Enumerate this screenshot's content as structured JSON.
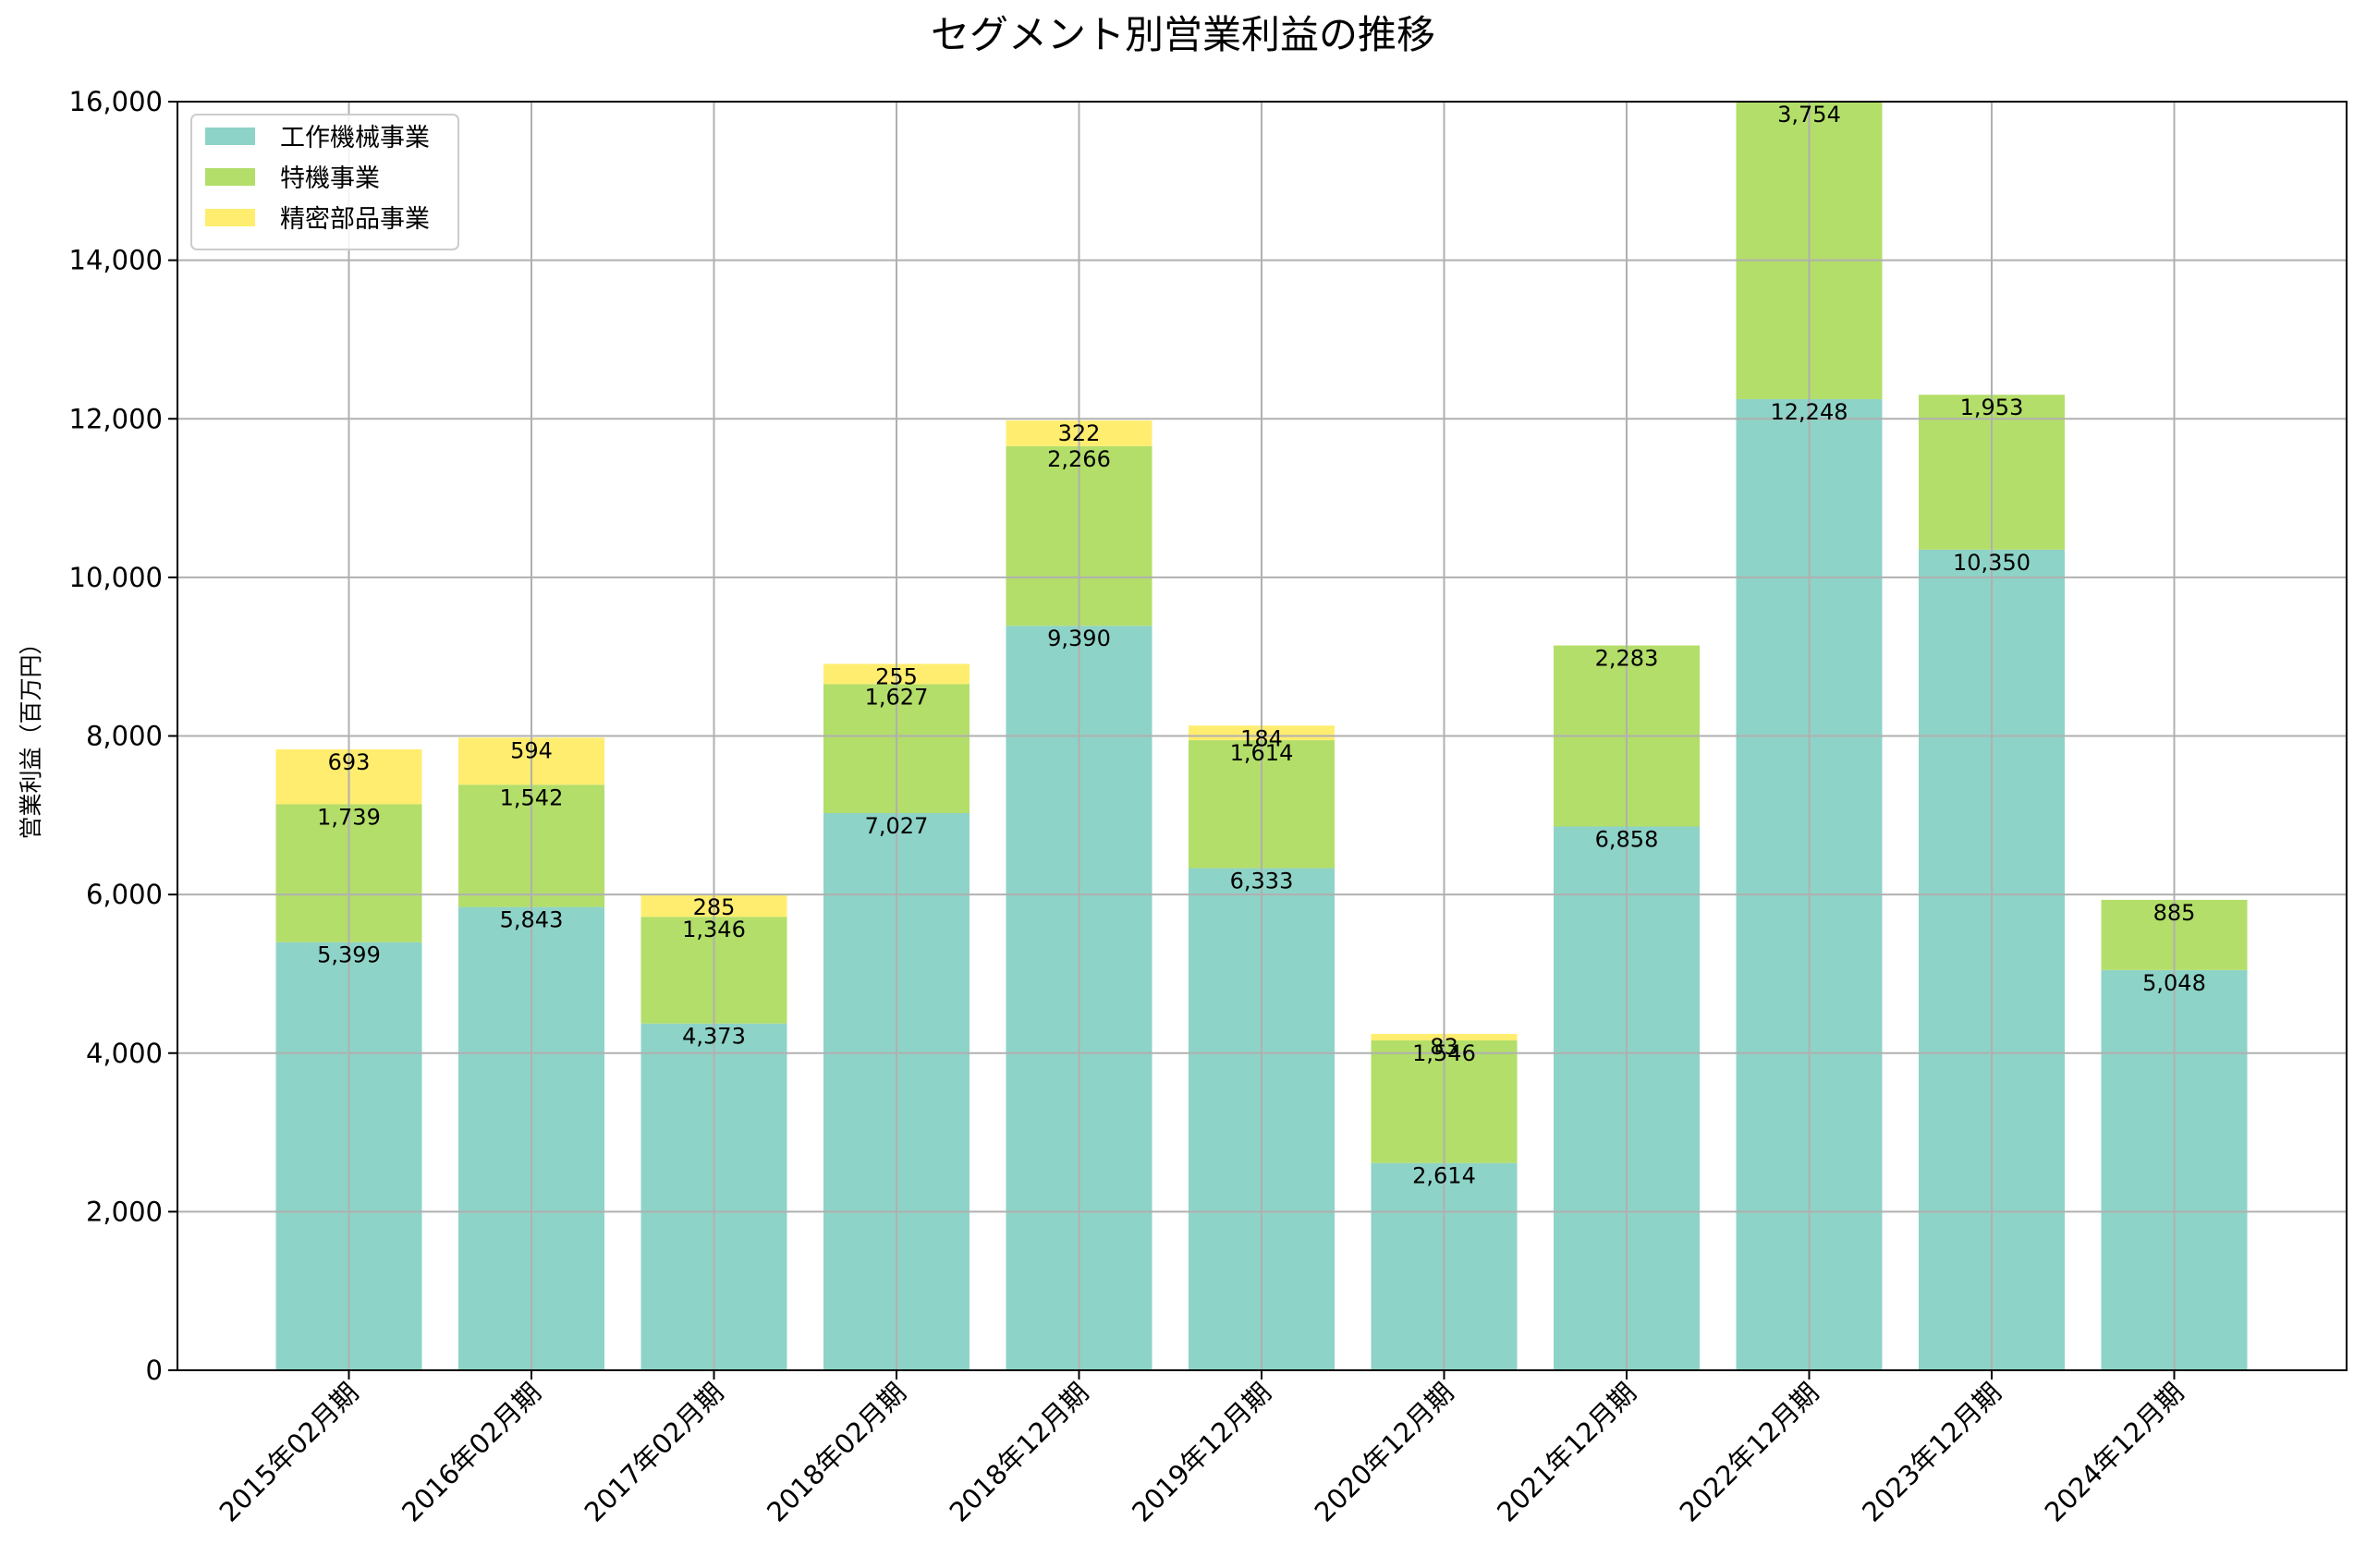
{
  "chart_data": {
    "type": "bar",
    "stacked": true,
    "title": "セグメント別営業利益の推移",
    "xlabel": "",
    "ylabel": "営業利益（百万円）",
    "ylim": [
      0,
      16000
    ],
    "yticks": [
      0,
      2000,
      4000,
      6000,
      8000,
      10000,
      12000,
      14000,
      16000
    ],
    "ytick_labels": [
      "0",
      "2,000",
      "4,000",
      "6,000",
      "8,000",
      "10,000",
      "12,000",
      "14,000",
      "16,000"
    ],
    "grid": true,
    "legend_position": "top-left",
    "categories": [
      "2015年02月期",
      "2016年02月期",
      "2017年02月期",
      "2018年02月期",
      "2018年12月期",
      "2019年12月期",
      "2020年12月期",
      "2021年12月期",
      "2022年12月期",
      "2023年12月期",
      "2024年12月期"
    ],
    "series": [
      {
        "name": "工作機械事業",
        "color": "#8ed3c7",
        "values": [
          5399,
          5843,
          4373,
          7027,
          9390,
          6333,
          2614,
          6858,
          12248,
          10350,
          5048
        ],
        "labels": [
          "5,399",
          "5,843",
          "4,373",
          "7,027",
          "9,390",
          "6,333",
          "2,614",
          "6,858",
          "12,248",
          "10,350",
          "5,048"
        ]
      },
      {
        "name": "特機事業",
        "color": "#b3de69",
        "values": [
          1739,
          1542,
          1346,
          1627,
          2266,
          1614,
          1546,
          2283,
          3754,
          1953,
          885
        ],
        "labels": [
          "1,739",
          "1,542",
          "1,346",
          "1,627",
          "2,266",
          "1,614",
          "1,546",
          "2,283",
          "3,754",
          "1,953",
          "885"
        ]
      },
      {
        "name": "精密部品事業",
        "color": "#ffed6f",
        "values": [
          693,
          594,
          285,
          255,
          322,
          184,
          83,
          null,
          null,
          null,
          null
        ],
        "labels": [
          "693",
          "594",
          "285",
          "255",
          "322",
          "184",
          "83",
          null,
          null,
          null,
          null
        ]
      }
    ]
  }
}
